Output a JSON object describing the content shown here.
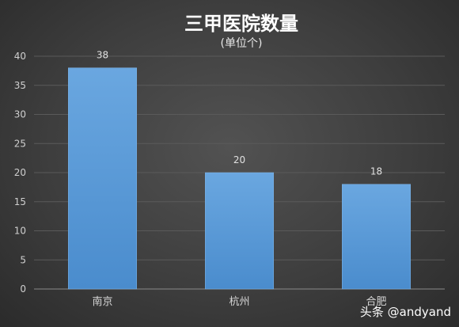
{
  "chart_data": {
    "type": "bar",
    "title": "三甲医院数量",
    "subtitle": "(单位个)",
    "categories": [
      "南京",
      "杭州",
      "合肥"
    ],
    "values": [
      38,
      20,
      18
    ],
    "data_labels": [
      "38",
      "20",
      "18"
    ],
    "ylim": [
      0,
      40
    ],
    "yticks": [
      0,
      5,
      10,
      15,
      20,
      25,
      30,
      35,
      40
    ],
    "grid": true,
    "legend": "none",
    "bar_color": "#5b9bd5"
  },
  "watermark": "头条 @andyand"
}
